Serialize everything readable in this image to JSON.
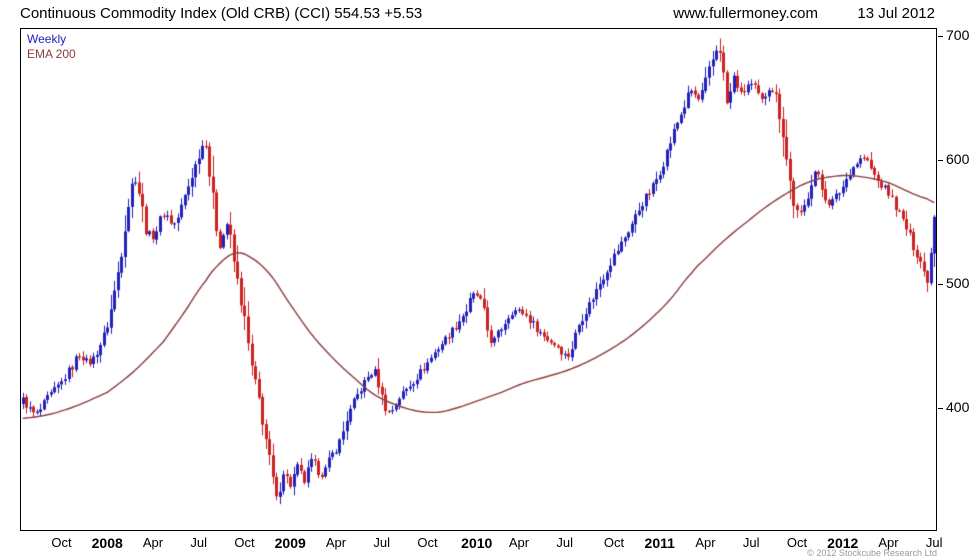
{
  "header": {
    "title": "Continuous Commodity Index (Old CRB) (CCI) 554.53 +5.53",
    "site": "www.fullermoney.com",
    "date": "13 Jul 2012"
  },
  "legend": {
    "weekly": "Weekly",
    "ema": "EMA 200"
  },
  "footer": {
    "copyright": "© 2012 Stockcube Research Ltd"
  },
  "chart_data": {
    "type": "candlestick",
    "title": "Continuous Commodity Index (Old CRB) (CCI)",
    "timeframe": "Weekly",
    "overlay": "EMA 200",
    "last_close": 554.53,
    "change": "+5.53",
    "weeks_total": 260,
    "ylim": [
      302,
      706
    ],
    "y_ticks": [
      700,
      600,
      500,
      400
    ],
    "x_ticks": [
      {
        "label": "Oct",
        "week": 11,
        "year": false
      },
      {
        "label": "2008",
        "week": 24,
        "year": true
      },
      {
        "label": "Apr",
        "week": 37,
        "year": false
      },
      {
        "label": "Jul",
        "week": 50,
        "year": false
      },
      {
        "label": "Oct",
        "week": 63,
        "year": false
      },
      {
        "label": "2009",
        "week": 76,
        "year": true
      },
      {
        "label": "Apr",
        "week": 89,
        "year": false
      },
      {
        "label": "Jul",
        "week": 102,
        "year": false
      },
      {
        "label": "Oct",
        "week": 115,
        "year": false
      },
      {
        "label": "2010",
        "week": 129,
        "year": true
      },
      {
        "label": "Apr",
        "week": 141,
        "year": false
      },
      {
        "label": "Jul",
        "week": 154,
        "year": false
      },
      {
        "label": "Oct",
        "week": 168,
        "year": false
      },
      {
        "label": "2011",
        "week": 181,
        "year": true
      },
      {
        "label": "Apr",
        "week": 194,
        "year": false
      },
      {
        "label": "Jul",
        "week": 207,
        "year": false
      },
      {
        "label": "Oct",
        "week": 220,
        "year": false
      },
      {
        "label": "2012",
        "week": 233,
        "year": true
      },
      {
        "label": "Apr",
        "week": 246,
        "year": false
      },
      {
        "label": "Jul",
        "week": 259,
        "year": false
      }
    ],
    "price_keypoints": [
      [
        0,
        407
      ],
      [
        2,
        399
      ],
      [
        4,
        396
      ],
      [
        7,
        408
      ],
      [
        11,
        421
      ],
      [
        14,
        434
      ],
      [
        16,
        443
      ],
      [
        19,
        437
      ],
      [
        22,
        452
      ],
      [
        24,
        468
      ],
      [
        27,
        510
      ],
      [
        30,
        565
      ],
      [
        32,
        585
      ],
      [
        34,
        560
      ],
      [
        35,
        545
      ],
      [
        37,
        539
      ],
      [
        40,
        557
      ],
      [
        43,
        549
      ],
      [
        46,
        571
      ],
      [
        49,
        596
      ],
      [
        51,
        612
      ],
      [
        52,
        616
      ],
      [
        53,
        590
      ],
      [
        54,
        567
      ],
      [
        56,
        532
      ],
      [
        58,
        549
      ],
      [
        60,
        518
      ],
      [
        61,
        502
      ],
      [
        63,
        470
      ],
      [
        65,
        432
      ],
      [
        67,
        407
      ],
      [
        69,
        375
      ],
      [
        71,
        342
      ],
      [
        72,
        327
      ],
      [
        74,
        349
      ],
      [
        76,
        338
      ],
      [
        78,
        353
      ],
      [
        80,
        341
      ],
      [
        82,
        357
      ],
      [
        85,
        347
      ],
      [
        88,
        363
      ],
      [
        90,
        373
      ],
      [
        92,
        392
      ],
      [
        96,
        416
      ],
      [
        100,
        429
      ],
      [
        102,
        409
      ],
      [
        104,
        397
      ],
      [
        107,
        409
      ],
      [
        110,
        419
      ],
      [
        114,
        433
      ],
      [
        118,
        449
      ],
      [
        122,
        463
      ],
      [
        126,
        479
      ],
      [
        128,
        491
      ],
      [
        130,
        486
      ],
      [
        133,
        455
      ],
      [
        136,
        465
      ],
      [
        139,
        478
      ],
      [
        142,
        477
      ],
      [
        145,
        468
      ],
      [
        148,
        458
      ],
      [
        152,
        450
      ],
      [
        155,
        443
      ],
      [
        158,
        468
      ],
      [
        161,
        484
      ],
      [
        164,
        501
      ],
      [
        167,
        518
      ],
      [
        170,
        533
      ],
      [
        173,
        549
      ],
      [
        176,
        566
      ],
      [
        179,
        579
      ],
      [
        182,
        599
      ],
      [
        185,
        623
      ],
      [
        188,
        644
      ],
      [
        190,
        656
      ],
      [
        192,
        649
      ],
      [
        194,
        663
      ],
      [
        196,
        681
      ],
      [
        198,
        690
      ],
      [
        200,
        646
      ],
      [
        202,
        667
      ],
      [
        204,
        653
      ],
      [
        206,
        661
      ],
      [
        208,
        658
      ],
      [
        210,
        648
      ],
      [
        212,
        659
      ],
      [
        214,
        651
      ],
      [
        216,
        623
      ],
      [
        217,
        601
      ],
      [
        219,
        566
      ],
      [
        221,
        556
      ],
      [
        223,
        573
      ],
      [
        225,
        591
      ],
      [
        227,
        577
      ],
      [
        229,
        566
      ],
      [
        231,
        571
      ],
      [
        233,
        579
      ],
      [
        235,
        591
      ],
      [
        237,
        598
      ],
      [
        239,
        602
      ],
      [
        241,
        593
      ],
      [
        243,
        583
      ],
      [
        245,
        577
      ],
      [
        247,
        569
      ],
      [
        249,
        557
      ],
      [
        251,
        545
      ],
      [
        253,
        531
      ],
      [
        255,
        519
      ],
      [
        257,
        505
      ],
      [
        258,
        527
      ],
      [
        259,
        554.53
      ]
    ],
    "ema_keypoints": [
      [
        0,
        392
      ],
      [
        11,
        398
      ],
      [
        24,
        413
      ],
      [
        32,
        431
      ],
      [
        40,
        454
      ],
      [
        46,
        478
      ],
      [
        52,
        503
      ],
      [
        56,
        517
      ],
      [
        60,
        525
      ],
      [
        64,
        523
      ],
      [
        70,
        509
      ],
      [
        76,
        484
      ],
      [
        82,
        460
      ],
      [
        88,
        441
      ],
      [
        94,
        425
      ],
      [
        100,
        411
      ],
      [
        106,
        403
      ],
      [
        112,
        398
      ],
      [
        118,
        397
      ],
      [
        124,
        401
      ],
      [
        130,
        407
      ],
      [
        136,
        413
      ],
      [
        142,
        420
      ],
      [
        148,
        425
      ],
      [
        154,
        430
      ],
      [
        160,
        437
      ],
      [
        166,
        446
      ],
      [
        172,
        457
      ],
      [
        178,
        471
      ],
      [
        184,
        488
      ],
      [
        190,
        509
      ],
      [
        194,
        521
      ],
      [
        198,
        532
      ],
      [
        202,
        542
      ],
      [
        206,
        551
      ],
      [
        210,
        560
      ],
      [
        214,
        568
      ],
      [
        218,
        575
      ],
      [
        222,
        581
      ],
      [
        226,
        585
      ],
      [
        230,
        587
      ],
      [
        234,
        588
      ],
      [
        238,
        587
      ],
      [
        242,
        585
      ],
      [
        246,
        582
      ],
      [
        250,
        577
      ],
      [
        254,
        572
      ],
      [
        257,
        569
      ],
      [
        259,
        566
      ]
    ],
    "colors": {
      "up": "#2222bb",
      "down": "#cc2222",
      "ema": "#8b3d3d",
      "text": "#000000",
      "copyright": "#999999",
      "background": "#ffffff"
    }
  }
}
